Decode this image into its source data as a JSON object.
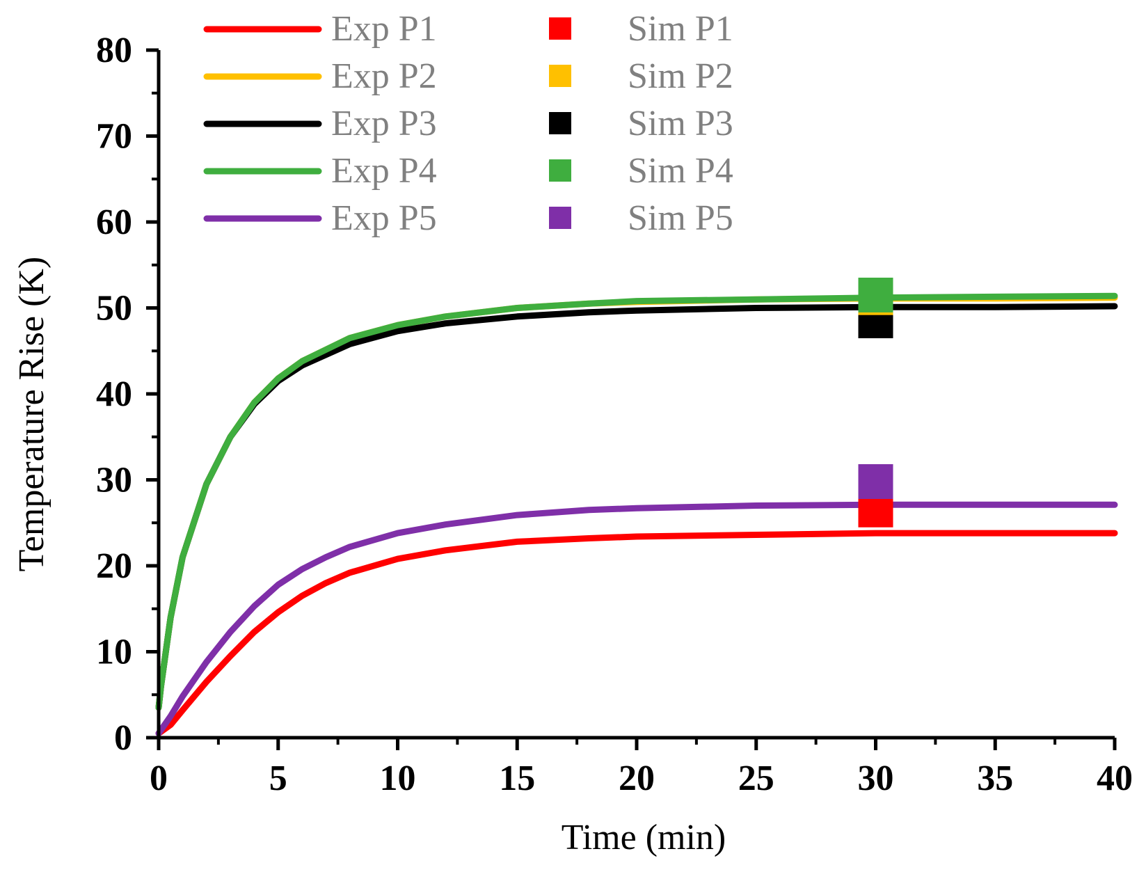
{
  "chart_data": {
    "type": "line",
    "title": "",
    "xlabel": "Time (min)",
    "ylabel": "Temperature Rise (K)",
    "xlim": [
      0,
      40
    ],
    "ylim": [
      0,
      80
    ],
    "x_ticks": [
      0,
      5,
      10,
      15,
      20,
      25,
      30,
      35,
      40
    ],
    "y_ticks": [
      0,
      10,
      20,
      30,
      40,
      50,
      60,
      70,
      80
    ],
    "grid": false,
    "legend_position": "top-left",
    "series": [
      {
        "name": "Exp P1",
        "kind": "line",
        "color": "#ff0000",
        "x": [
          0,
          0.5,
          1,
          2,
          3,
          4,
          5,
          6,
          7,
          8,
          10,
          12,
          15,
          18,
          20,
          25,
          30,
          35,
          40
        ],
        "y": [
          0.5,
          1.5,
          3.2,
          6.5,
          9.5,
          12.3,
          14.6,
          16.5,
          18.0,
          19.2,
          20.8,
          21.8,
          22.8,
          23.2,
          23.4,
          23.6,
          23.8,
          23.8,
          23.8
        ]
      },
      {
        "name": "Exp P2",
        "kind": "line",
        "color": "#ffc000",
        "x": [
          0,
          0.1,
          0.5,
          1,
          2,
          3,
          4,
          5,
          6,
          8,
          10,
          12,
          15,
          18,
          20,
          25,
          30,
          35,
          40
        ],
        "y": [
          3.5,
          6.0,
          14.0,
          21.0,
          29.5,
          35.0,
          39.0,
          41.8,
          43.8,
          46.5,
          48.0,
          49.0,
          50.0,
          50.5,
          50.7,
          51.0,
          51.1,
          51.1,
          51.2
        ]
      },
      {
        "name": "Exp P3",
        "kind": "line",
        "color": "#000000",
        "x": [
          0,
          0.1,
          0.5,
          1,
          2,
          3,
          4,
          5,
          6,
          8,
          10,
          12,
          15,
          18,
          20,
          25,
          30,
          35,
          40
        ],
        "y": [
          3.5,
          6.0,
          14.0,
          21.0,
          29.5,
          35.0,
          38.8,
          41.5,
          43.3,
          45.8,
          47.3,
          48.2,
          49.0,
          49.5,
          49.7,
          50.0,
          50.1,
          50.1,
          50.2
        ]
      },
      {
        "name": "Exp P4",
        "kind": "line",
        "color": "#3fae3f",
        "x": [
          0,
          0.1,
          0.5,
          1,
          2,
          3,
          4,
          5,
          6,
          8,
          10,
          12,
          15,
          18,
          20,
          25,
          30,
          35,
          40
        ],
        "y": [
          3.5,
          6.0,
          14.0,
          21.0,
          29.5,
          35.0,
          39.0,
          41.8,
          43.8,
          46.5,
          48.0,
          49.0,
          50.0,
          50.5,
          50.8,
          51.0,
          51.2,
          51.3,
          51.4
        ]
      },
      {
        "name": "Exp P5",
        "kind": "line",
        "color": "#7f2fa8",
        "x": [
          0,
          0.5,
          1,
          2,
          3,
          4,
          5,
          6,
          7,
          8,
          10,
          12,
          15,
          18,
          20,
          25,
          30,
          35,
          40
        ],
        "y": [
          0.5,
          2.5,
          4.8,
          8.8,
          12.3,
          15.3,
          17.8,
          19.6,
          21.0,
          22.2,
          23.8,
          24.8,
          25.9,
          26.5,
          26.7,
          27.0,
          27.1,
          27.1,
          27.1
        ]
      },
      {
        "name": "Sim P1",
        "kind": "marker",
        "color": "#ff0000",
        "x": [
          30
        ],
        "y": [
          26.5
        ]
      },
      {
        "name": "Sim P2",
        "kind": "marker",
        "color": "#ffc000",
        "x": [
          30
        ],
        "y": [
          51.2
        ]
      },
      {
        "name": "Sim P3",
        "kind": "marker",
        "color": "#000000",
        "x": [
          30
        ],
        "y": [
          48.5
        ]
      },
      {
        "name": "Sim P4",
        "kind": "marker",
        "color": "#3fae3f",
        "x": [
          30
        ],
        "y": [
          51.5
        ]
      },
      {
        "name": "Sim P5",
        "kind": "marker",
        "color": "#7f2fa8",
        "x": [
          30
        ],
        "y": [
          29.8
        ]
      }
    ]
  }
}
